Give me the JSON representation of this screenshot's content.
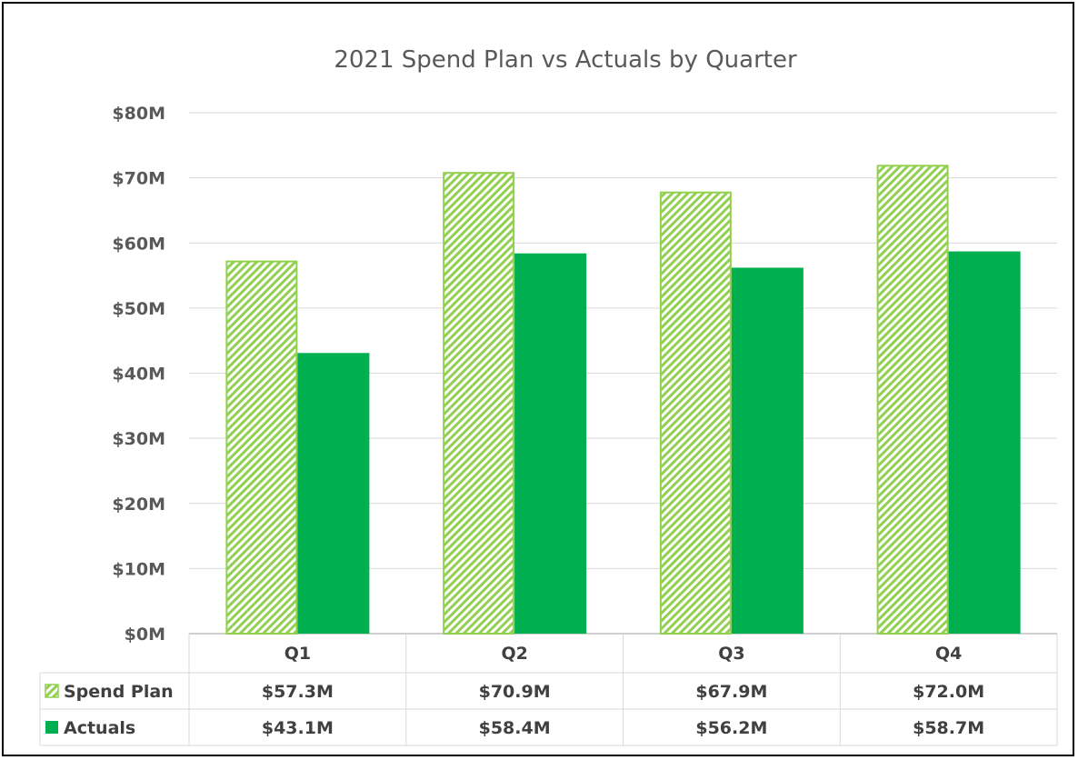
{
  "chart_data": {
    "type": "bar",
    "title": "2021 Spend Plan vs Actuals by Quarter",
    "categories": [
      "Q1",
      "Q2",
      "Q3",
      "Q4"
    ],
    "series": [
      {
        "name": "Spend Plan",
        "values": [
          57.3,
          70.9,
          67.9,
          72.0
        ],
        "labels": [
          "$57.3M",
          "$70.9M",
          "$67.9M",
          "$72.0M"
        ],
        "color": "#92D050",
        "fill": "hatched"
      },
      {
        "name": "Actuals",
        "values": [
          43.1,
          58.4,
          56.2,
          58.7
        ],
        "labels": [
          "$43.1M",
          "$58.4M",
          "$56.2M",
          "$58.7M"
        ],
        "color": "#00B050",
        "fill": "solid"
      }
    ],
    "ylim": [
      0,
      80
    ],
    "yticks": [
      0,
      10,
      20,
      30,
      40,
      50,
      60,
      70,
      80
    ],
    "ytick_labels": [
      "$0M",
      "$10M",
      "$20M",
      "$30M",
      "$40M",
      "$50M",
      "$60M",
      "$70M",
      "$80M"
    ],
    "grid": true,
    "legend": "data-table-below",
    "xlabel": "",
    "ylabel": ""
  }
}
